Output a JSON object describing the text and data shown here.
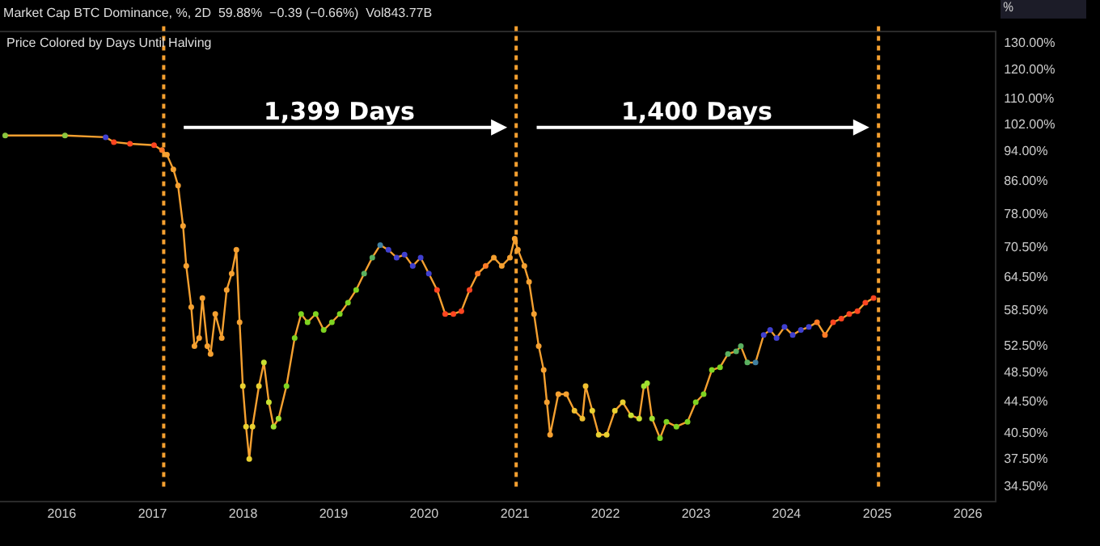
{
  "chart_data": {
    "type": "line",
    "title": "Market Cap BTC Dominance, %, 2D  59.88%  −0.39 (−0.66%)  Vol843.77B",
    "subtitle": "Price Colored by Days Until Halving",
    "ylabel": "%",
    "annotations": [
      "1,399 Days",
      "1,400 Days"
    ],
    "x": [
      "2015-05-18",
      "2016-01-14",
      "2016-06-26",
      "2016-07-29",
      "2016-10-02",
      "2017-01-07",
      "2017-02-08",
      "2017-02-28",
      "2017-03-26",
      "2017-04-14",
      "2017-05-04",
      "2017-05-17",
      "2017-06-06",
      "2017-06-19",
      "2017-07-08",
      "2017-07-21",
      "2017-08-10",
      "2017-08-23",
      "2017-09-11",
      "2017-10-07",
      "2017-10-27",
      "2017-11-16",
      "2017-12-05",
      "2017-12-18",
      "2017-12-31",
      "2018-01-13",
      "2018-01-26",
      "2018-02-08",
      "2018-03-06",
      "2018-03-26",
      "2018-04-15",
      "2018-05-04",
      "2018-05-24",
      "2018-06-25",
      "2018-07-28",
      "2018-08-23",
      "2018-09-18",
      "2018-10-21",
      "2018-11-22",
      "2018-12-25",
      "2019-01-26",
      "2019-02-28",
      "2019-04-02",
      "2019-05-04",
      "2019-06-06",
      "2019-07-08",
      "2019-08-10",
      "2019-09-12",
      "2019-10-14",
      "2019-11-16",
      "2019-12-18",
      "2020-01-20",
      "2020-02-22",
      "2020-03-26",
      "2020-04-28",
      "2020-05-30",
      "2020-07-02",
      "2020-08-04",
      "2020-09-05",
      "2020-10-08",
      "2020-11-09",
      "2020-12-12",
      "2020-12-31",
      "2021-01-13",
      "2021-02-08",
      "2021-02-27",
      "2021-03-19",
      "2021-04-07",
      "2021-04-27",
      "2021-05-10",
      "2021-05-23",
      "2021-06-25",
      "2021-07-27",
      "2021-08-29",
      "2021-09-30",
      "2021-10-13",
      "2021-11-09",
      "2021-12-05",
      "2022-01-06",
      "2022-02-08",
      "2022-03-12",
      "2022-04-14",
      "2022-05-17",
      "2022-06-05",
      "2022-06-18",
      "2022-07-08",
      "2022-08-09",
      "2022-09-04",
      "2022-10-14",
      "2022-11-28",
      "2022-12-31",
      "2023-02-01",
      "2023-03-06",
      "2023-04-08",
      "2023-05-10",
      "2023-06-12",
      "2023-07-01",
      "2023-07-27",
      "2023-08-29",
      "2023-10-01",
      "2023-10-27",
      "2023-11-22",
      "2023-12-24",
      "2024-01-26",
      "2024-02-28",
      "2024-03-31",
      "2024-05-03",
      "2024-06-04",
      "2024-07-07",
      "2024-08-09",
      "2024-09-10",
      "2024-10-13",
      "2024-11-14",
      "2024-12-17"
    ],
    "series": [
      {
        "color": "#f5a030",
        "values": [
          98.4,
          98.4,
          97.9,
          96.5,
          96.0,
          95.6,
          94.2,
          92.9,
          88.9,
          84.7,
          75.1,
          66.6,
          58.9,
          52.4,
          53.7,
          60.5,
          52.4,
          51.2,
          57.7,
          53.7,
          62.0,
          65.1,
          69.9,
          56.3,
          46.5,
          41.2,
          37.4,
          41.2,
          46.5,
          49.9,
          44.3,
          41.2,
          42.2,
          46.5,
          53.7,
          57.7,
          56.3,
          57.7,
          55.0,
          56.3,
          57.7,
          59.7,
          62.0,
          65.1,
          68.3,
          70.9,
          69.9,
          68.3,
          68.9,
          66.6,
          68.3,
          65.1,
          62.0,
          57.7,
          57.7,
          58.2,
          62.0,
          65.1,
          66.6,
          68.3,
          66.6,
          68.3,
          72.3,
          69.9,
          66.6,
          63.5,
          57.7,
          52.4,
          48.8,
          44.3,
          40.2,
          45.4,
          45.4,
          43.2,
          42.2,
          46.5,
          43.2,
          40.2,
          40.2,
          43.2,
          44.3,
          42.6,
          42.2,
          46.5,
          46.9,
          42.2,
          39.8,
          41.8,
          41.2,
          41.8,
          44.3,
          45.4,
          48.8,
          49.2,
          51.2,
          51.6,
          52.4,
          49.9,
          49.9,
          54.2,
          55.0,
          53.7,
          55.5,
          54.2,
          55.0,
          55.5,
          56.3,
          54.2,
          56.3,
          56.9,
          57.7,
          58.2,
          59.7,
          60.5
        ],
        "colors": [
          "#8cc63f",
          "#8cc63f",
          "#4040d0",
          "#ff4520",
          "#ff4520",
          "#ff4520",
          "#ff7a25",
          "#f5a030",
          "#f5a030",
          "#f5a030",
          "#f5a030",
          "#f5a030",
          "#f5a030",
          "#f5a030",
          "#f5a030",
          "#f5a030",
          "#f5a030",
          "#f5a030",
          "#f5a030",
          "#f5a030",
          "#f5a030",
          "#f5a030",
          "#f5a030",
          "#f5a030",
          "#e8d030",
          "#e8d030",
          "#e8d030",
          "#e8d030",
          "#e8d030",
          "#c8e030",
          "#c8e030",
          "#a0e030",
          "#a0e030",
          "#7ed321",
          "#7ed321",
          "#7ed321",
          "#7ed321",
          "#7ed321",
          "#7ed321",
          "#7ed321",
          "#7ed321",
          "#7ed321",
          "#7ed321",
          "#5ab060",
          "#5ab060",
          "#4080a0",
          "#4040d0",
          "#4040d0",
          "#4040d0",
          "#4040d0",
          "#4040d0",
          "#4040d0",
          "#ff4520",
          "#ff4520",
          "#ff4520",
          "#ff4520",
          "#ff4520",
          "#ff7a25",
          "#ff7a25",
          "#f5a030",
          "#f5a030",
          "#f5a030",
          "#f5a030",
          "#f5a030",
          "#f5a030",
          "#f5a030",
          "#f5a030",
          "#f5a030",
          "#f5a030",
          "#f5a030",
          "#f5a030",
          "#f5a030",
          "#f5a030",
          "#f0c030",
          "#f0c030",
          "#f0c030",
          "#e8d030",
          "#e8d030",
          "#e8d030",
          "#e8d030",
          "#e8d030",
          "#c8e030",
          "#c8e030",
          "#a0e030",
          "#a0e030",
          "#a0e030",
          "#7ed321",
          "#7ed321",
          "#7ed321",
          "#7ed321",
          "#7ed321",
          "#7ed321",
          "#7ed321",
          "#7ed321",
          "#5ab060",
          "#5ab060",
          "#5ab060",
          "#5ab060",
          "#4080a0",
          "#4040d0",
          "#4040d0",
          "#4040d0",
          "#4040d0",
          "#4040d0",
          "#4040d0",
          "#4040d0",
          "#ff7a25",
          "#ff7a25",
          "#ff4520",
          "#ff4520",
          "#ff4520",
          "#ff4520",
          "#ff4520",
          "#ff4520"
        ]
      }
    ],
    "xlim": [
      "2015-04-27",
      "2026-04-20"
    ],
    "xticks": [
      {
        "value": "2016-01-01",
        "label": "2016"
      },
      {
        "value": "2017-01-01",
        "label": "2017"
      },
      {
        "value": "2018-01-01",
        "label": "2018"
      },
      {
        "value": "2019-01-01",
        "label": "2019"
      },
      {
        "value": "2020-01-01",
        "label": "2020"
      },
      {
        "value": "2021-01-01",
        "label": "2021"
      },
      {
        "value": "2022-01-01",
        "label": "2022"
      },
      {
        "value": "2023-01-01",
        "label": "2023"
      },
      {
        "value": "2024-01-01",
        "label": "2024"
      },
      {
        "value": "2025-01-01",
        "label": "2025"
      },
      {
        "value": "2026-01-01",
        "label": "2026"
      }
    ],
    "log": true,
    "ylim": [
      33,
      134
    ],
    "yticks": [
      {
        "value": 34.5,
        "label": "34.50%"
      },
      {
        "value": 37.5,
        "label": "37.50%"
      },
      {
        "value": 40.5,
        "label": "40.50%"
      },
      {
        "value": 44.5,
        "label": "44.50%"
      },
      {
        "value": 48.5,
        "label": "48.50%"
      },
      {
        "value": 52.5,
        "label": "52.50%"
      },
      {
        "value": 58.5,
        "label": "58.50%"
      },
      {
        "value": 64.5,
        "label": "64.50%"
      },
      {
        "value": 70.5,
        "label": "70.50%"
      },
      {
        "value": 78,
        "label": "78.00%"
      },
      {
        "value": 86,
        "label": "86.00%"
      },
      {
        "value": 94,
        "label": "94.00%"
      },
      {
        "value": 102,
        "label": "102.00%"
      },
      {
        "value": 110,
        "label": "110.00%"
      },
      {
        "value": 120,
        "label": "120.00%"
      },
      {
        "value": 130,
        "label": "130.00%"
      }
    ],
    "ref_lines": [
      {
        "axis": "x",
        "value": "2017-02-15",
        "color": "#f5a030",
        "line_style": "dotted"
      },
      {
        "axis": "x",
        "value": "2021-01-06",
        "color": "#f5a030",
        "line_style": "dotted"
      },
      {
        "axis": "x",
        "value": "2025-01-06",
        "color": "#f5a030",
        "line_style": "dotted"
      }
    ],
    "grid": false,
    "marker": "circle",
    "line_style": "solid"
  }
}
